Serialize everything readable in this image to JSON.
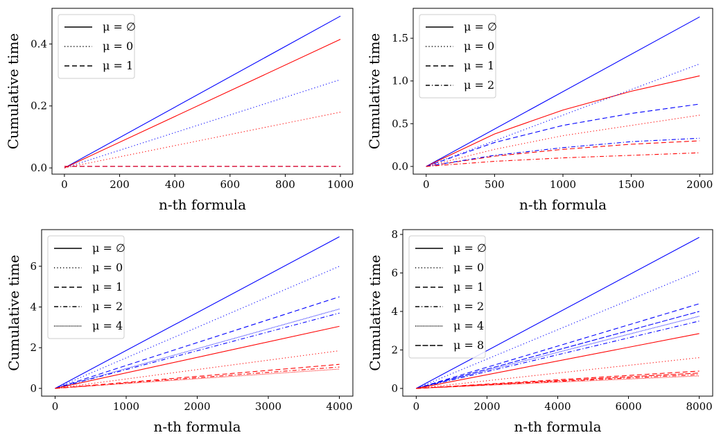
{
  "chart_data": [
    {
      "type": "line",
      "xlabel": "n-th formula",
      "ylabel": "Cumulative time",
      "xlim": [
        -45,
        1045
      ],
      "ylim": [
        -0.02,
        0.515
      ],
      "xticks": [
        0,
        200,
        400,
        600,
        800,
        1000
      ],
      "yticks": [
        0.0,
        0.2,
        0.4
      ],
      "ytick_labels": [
        "0.0",
        "0.2",
        "0.4"
      ],
      "legend_position": "upper-left",
      "legend": [
        {
          "label": "μ = ∅",
          "style": "solid"
        },
        {
          "label": "μ = 0",
          "style": "dotted"
        },
        {
          "label": "μ = 1",
          "style": "dashed"
        }
      ],
      "series": [
        {
          "color": "#0000ff",
          "style": "solid",
          "x": [
            0,
            1000
          ],
          "y": [
            0,
            0.49
          ]
        },
        {
          "color": "#ff0000",
          "style": "solid",
          "x": [
            0,
            1000
          ],
          "y": [
            0,
            0.415
          ]
        },
        {
          "color": "#0000ff",
          "style": "dotted",
          "x": [
            0,
            1000
          ],
          "y": [
            0,
            0.285
          ]
        },
        {
          "color": "#ff0000",
          "style": "dotted",
          "x": [
            0,
            1000
          ],
          "y": [
            0,
            0.18
          ]
        },
        {
          "color": "#0000ff",
          "style": "dashed",
          "x": [
            0,
            1000
          ],
          "y": [
            0.005,
            0.005
          ]
        },
        {
          "color": "#ff0000",
          "style": "dashed",
          "x": [
            0,
            1000
          ],
          "y": [
            0.005,
            0.005
          ]
        }
      ]
    },
    {
      "type": "line",
      "xlabel": "n-th formula",
      "ylabel": "Cumulative time",
      "xlim": [
        -95,
        2095
      ],
      "ylim": [
        -0.09,
        1.85
      ],
      "xticks": [
        0,
        500,
        1000,
        1500,
        2000
      ],
      "yticks": [
        0.0,
        0.5,
        1.0,
        1.5
      ],
      "ytick_labels": [
        "0.0",
        "0.5",
        "1.0",
        "1.5"
      ],
      "legend_position": "upper-left",
      "legend": [
        {
          "label": "μ = ∅",
          "style": "solid"
        },
        {
          "label": "μ = 0",
          "style": "dotted"
        },
        {
          "label": "μ = 1",
          "style": "dashed"
        },
        {
          "label": "μ = 2",
          "style": "dashdot"
        }
      ],
      "series": [
        {
          "color": "#0000ff",
          "style": "solid",
          "x": [
            0,
            2000
          ],
          "y": [
            0,
            1.75
          ]
        },
        {
          "color": "#ff0000",
          "style": "solid",
          "x": [
            0,
            500,
            1000,
            1500,
            2000
          ],
          "y": [
            0,
            0.38,
            0.66,
            0.88,
            1.06
          ]
        },
        {
          "color": "#0000ff",
          "style": "dotted",
          "x": [
            0,
            2000
          ],
          "y": [
            0,
            1.2
          ]
        },
        {
          "color": "#ff0000",
          "style": "dotted",
          "x": [
            0,
            500,
            1000,
            1500,
            2000
          ],
          "y": [
            0,
            0.2,
            0.36,
            0.48,
            0.6
          ]
        },
        {
          "color": "#0000ff",
          "style": "dashed",
          "x": [
            0,
            500,
            1000,
            1500,
            2000
          ],
          "y": [
            0,
            0.28,
            0.48,
            0.62,
            0.73
          ]
        },
        {
          "color": "#ff0000",
          "style": "dashed",
          "x": [
            0,
            500,
            1000,
            1500,
            2000
          ],
          "y": [
            0,
            0.12,
            0.2,
            0.26,
            0.3
          ]
        },
        {
          "color": "#0000ff",
          "style": "dashdot",
          "x": [
            0,
            500,
            1000,
            1500,
            2000
          ],
          "y": [
            0,
            0.13,
            0.22,
            0.29,
            0.33
          ]
        },
        {
          "color": "#ff0000",
          "style": "dashdot",
          "x": [
            0,
            500,
            1000,
            1500,
            2000
          ],
          "y": [
            0,
            0.06,
            0.1,
            0.13,
            0.16
          ]
        }
      ]
    },
    {
      "type": "line",
      "xlabel": "n-th formula",
      "ylabel": "Cumulative time",
      "xlim": [
        -190,
        4190
      ],
      "ylim": [
        -0.38,
        7.8
      ],
      "xticks": [
        0,
        1000,
        2000,
        3000,
        4000
      ],
      "yticks": [
        0,
        2,
        4,
        6
      ],
      "ytick_labels": [
        "0",
        "2",
        "4",
        "6"
      ],
      "legend_position": "upper-left",
      "legend": [
        {
          "label": "μ = ∅",
          "style": "solid"
        },
        {
          "label": "μ = 0",
          "style": "dotted"
        },
        {
          "label": "μ = 1",
          "style": "dashed"
        },
        {
          "label": "μ = 2",
          "style": "dashdot"
        },
        {
          "label": "μ = 4",
          "style": "finedot"
        }
      ],
      "series": [
        {
          "color": "#0000ff",
          "style": "solid",
          "x": [
            0,
            4000
          ],
          "y": [
            0,
            7.45
          ]
        },
        {
          "color": "#0000ff",
          "style": "dotted",
          "x": [
            0,
            4000
          ],
          "y": [
            0,
            6.0
          ]
        },
        {
          "color": "#0000ff",
          "style": "dashed",
          "x": [
            0,
            4000
          ],
          "y": [
            0,
            4.5
          ]
        },
        {
          "color": "#0000ff",
          "style": "finedot",
          "x": [
            0,
            4000
          ],
          "y": [
            0,
            3.9
          ]
        },
        {
          "color": "#0000ff",
          "style": "dashdot",
          "x": [
            0,
            4000
          ],
          "y": [
            0,
            3.7
          ]
        },
        {
          "color": "#ff0000",
          "style": "solid",
          "x": [
            0,
            4000
          ],
          "y": [
            0,
            3.05
          ]
        },
        {
          "color": "#ff0000",
          "style": "dotted",
          "x": [
            0,
            4000
          ],
          "y": [
            0,
            1.85
          ]
        },
        {
          "color": "#ff0000",
          "style": "dashed",
          "x": [
            0,
            4000
          ],
          "y": [
            0,
            1.18
          ]
        },
        {
          "color": "#ff0000",
          "style": "dashdot",
          "x": [
            0,
            4000
          ],
          "y": [
            0,
            1.05
          ]
        },
        {
          "color": "#ff0000",
          "style": "finedot",
          "x": [
            0,
            4000
          ],
          "y": [
            0,
            0.95
          ]
        }
      ]
    },
    {
      "type": "line",
      "xlabel": "n-th formula",
      "ylabel": "Cumulative time",
      "xlim": [
        -380,
        8380
      ],
      "ylim": [
        -0.4,
        8.25
      ],
      "xticks": [
        0,
        2000,
        4000,
        6000,
        8000
      ],
      "yticks": [
        0,
        2,
        4,
        6,
        8
      ],
      "ytick_labels": [
        "0",
        "2",
        "4",
        "6",
        "8"
      ],
      "legend_position": "upper-left",
      "legend": [
        {
          "label": "μ = ∅",
          "style": "solid"
        },
        {
          "label": "μ = 0",
          "style": "dotted"
        },
        {
          "label": "μ = 1",
          "style": "dashed"
        },
        {
          "label": "μ = 2",
          "style": "dashdot"
        },
        {
          "label": "μ = 4",
          "style": "finedot"
        },
        {
          "label": "μ = 8",
          "style": "longdash"
        }
      ],
      "series": [
        {
          "color": "#0000ff",
          "style": "solid",
          "x": [
            0,
            8000
          ],
          "y": [
            0,
            7.85
          ]
        },
        {
          "color": "#0000ff",
          "style": "dotted",
          "x": [
            0,
            8000
          ],
          "y": [
            0,
            6.1
          ]
        },
        {
          "color": "#0000ff",
          "style": "dashed",
          "x": [
            0,
            8000
          ],
          "y": [
            0,
            4.4
          ]
        },
        {
          "color": "#0000ff",
          "style": "longdash",
          "x": [
            0,
            8000
          ],
          "y": [
            0,
            4.0
          ]
        },
        {
          "color": "#0000ff",
          "style": "finedot",
          "x": [
            0,
            8000
          ],
          "y": [
            0,
            3.75
          ]
        },
        {
          "color": "#0000ff",
          "style": "dashdot",
          "x": [
            0,
            8000
          ],
          "y": [
            0,
            3.5
          ]
        },
        {
          "color": "#ff0000",
          "style": "solid",
          "x": [
            0,
            8000
          ],
          "y": [
            0,
            2.85
          ]
        },
        {
          "color": "#ff0000",
          "style": "dotted",
          "x": [
            0,
            8000
          ],
          "y": [
            0,
            1.6
          ]
        },
        {
          "color": "#ff0000",
          "style": "dashed",
          "x": [
            0,
            8000
          ],
          "y": [
            0,
            0.9
          ]
        },
        {
          "color": "#ff0000",
          "style": "longdash",
          "x": [
            0,
            8000
          ],
          "y": [
            0,
            0.8
          ]
        },
        {
          "color": "#ff0000",
          "style": "dashdot",
          "x": [
            0,
            8000
          ],
          "y": [
            0,
            0.72
          ]
        },
        {
          "color": "#ff0000",
          "style": "finedot",
          "x": [
            0,
            8000
          ],
          "y": [
            0,
            0.65
          ]
        }
      ]
    }
  ]
}
